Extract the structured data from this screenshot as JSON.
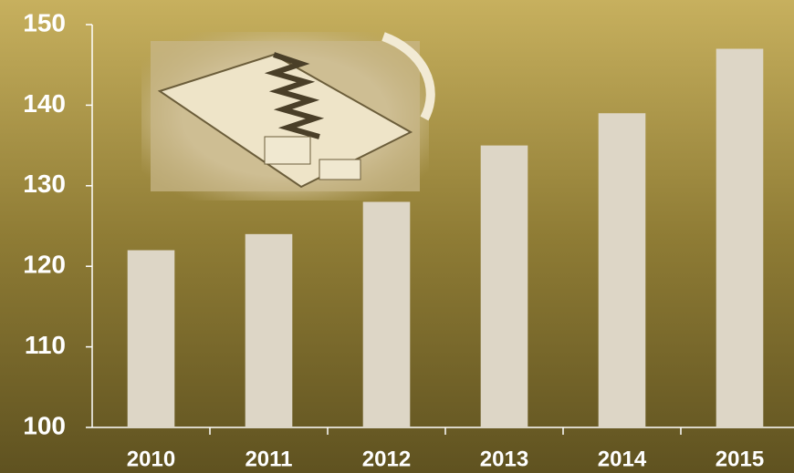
{
  "chart_data": {
    "type": "bar",
    "categories": [
      "2010",
      "2011",
      "2012",
      "2013",
      "2014",
      "2015"
    ],
    "values": [
      122,
      124,
      128,
      135,
      139,
      147
    ],
    "color": "#ddd6c6",
    "ylim": [
      100,
      150
    ],
    "yticks": [
      100,
      110,
      120,
      130,
      140,
      150
    ],
    "grid": false
  }
}
